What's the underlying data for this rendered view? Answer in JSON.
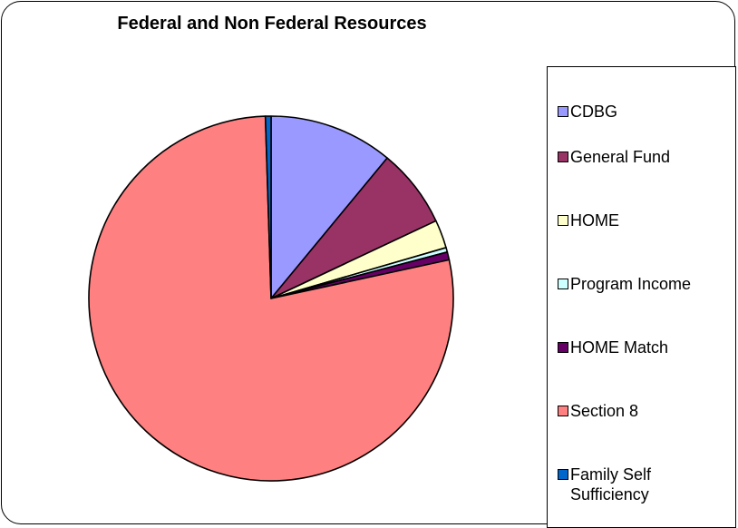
{
  "chart_data": {
    "type": "pie",
    "title": "Federal and Non Federal Resources",
    "slices": [
      {
        "label": "CDBG",
        "value": 11.0,
        "color": "#9999ff"
      },
      {
        "label": "General Fund",
        "value": 7.0,
        "color": "#993366"
      },
      {
        "label": "HOME",
        "value": 2.5,
        "color": "#ffffcc"
      },
      {
        "label": "Program Income",
        "value": 0.4,
        "color": "#ccffff"
      },
      {
        "label": "HOME Match",
        "value": 0.7,
        "color": "#660066"
      },
      {
        "label": "Section 8",
        "value": 77.9,
        "color": "#ff8080"
      },
      {
        "label": "Family Self Sufficiency",
        "value": 0.5,
        "color": "#0066cc"
      }
    ],
    "legend_position": "right"
  }
}
